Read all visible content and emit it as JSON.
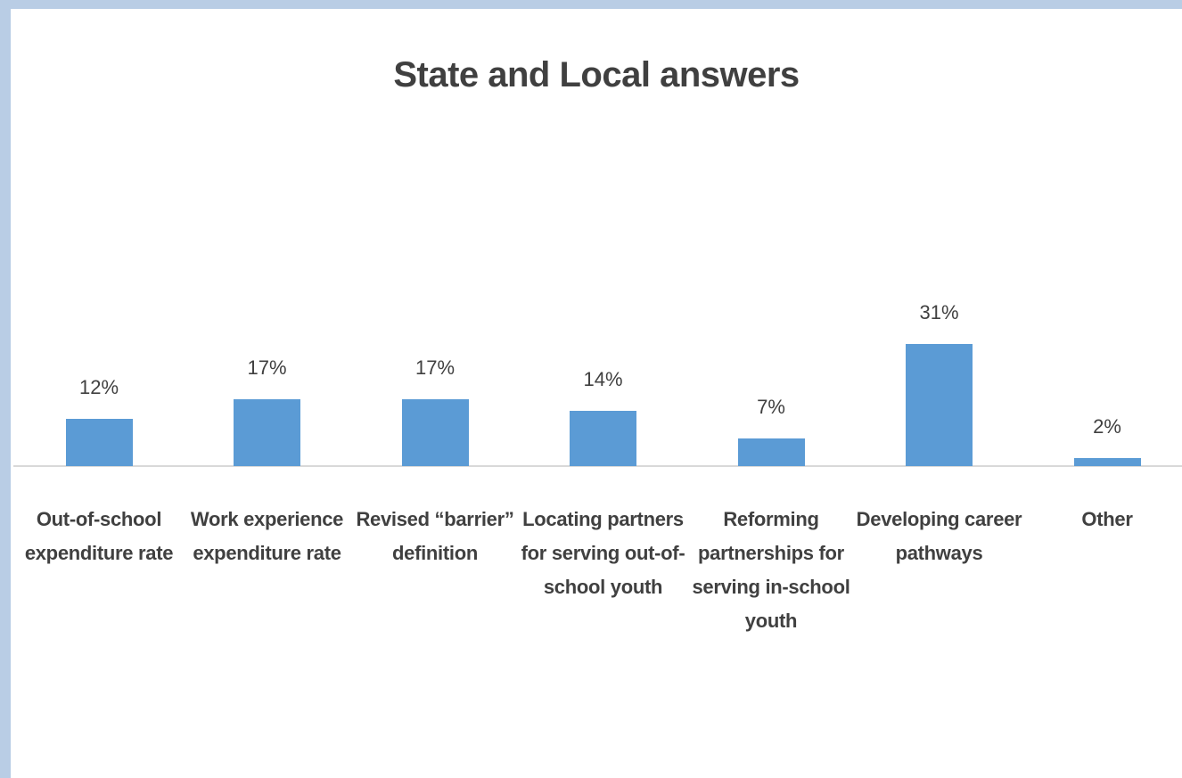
{
  "chart_data": {
    "type": "bar",
    "title": "State and Local answers",
    "categories": [
      "Out-of-school expenditure rate",
      "Work experience expenditure rate",
      "Revised “barrier” definition",
      "Locating partners for serving out-of-school youth",
      "Reforming partnerships for serving in-school youth",
      "Developing career pathways",
      "Other"
    ],
    "values": [
      12,
      17,
      17,
      14,
      7,
      31,
      2
    ],
    "value_labels": [
      "12%",
      "17%",
      "17%",
      "14%",
      "7%",
      "31%",
      "2%"
    ],
    "color": "#5b9bd5"
  }
}
